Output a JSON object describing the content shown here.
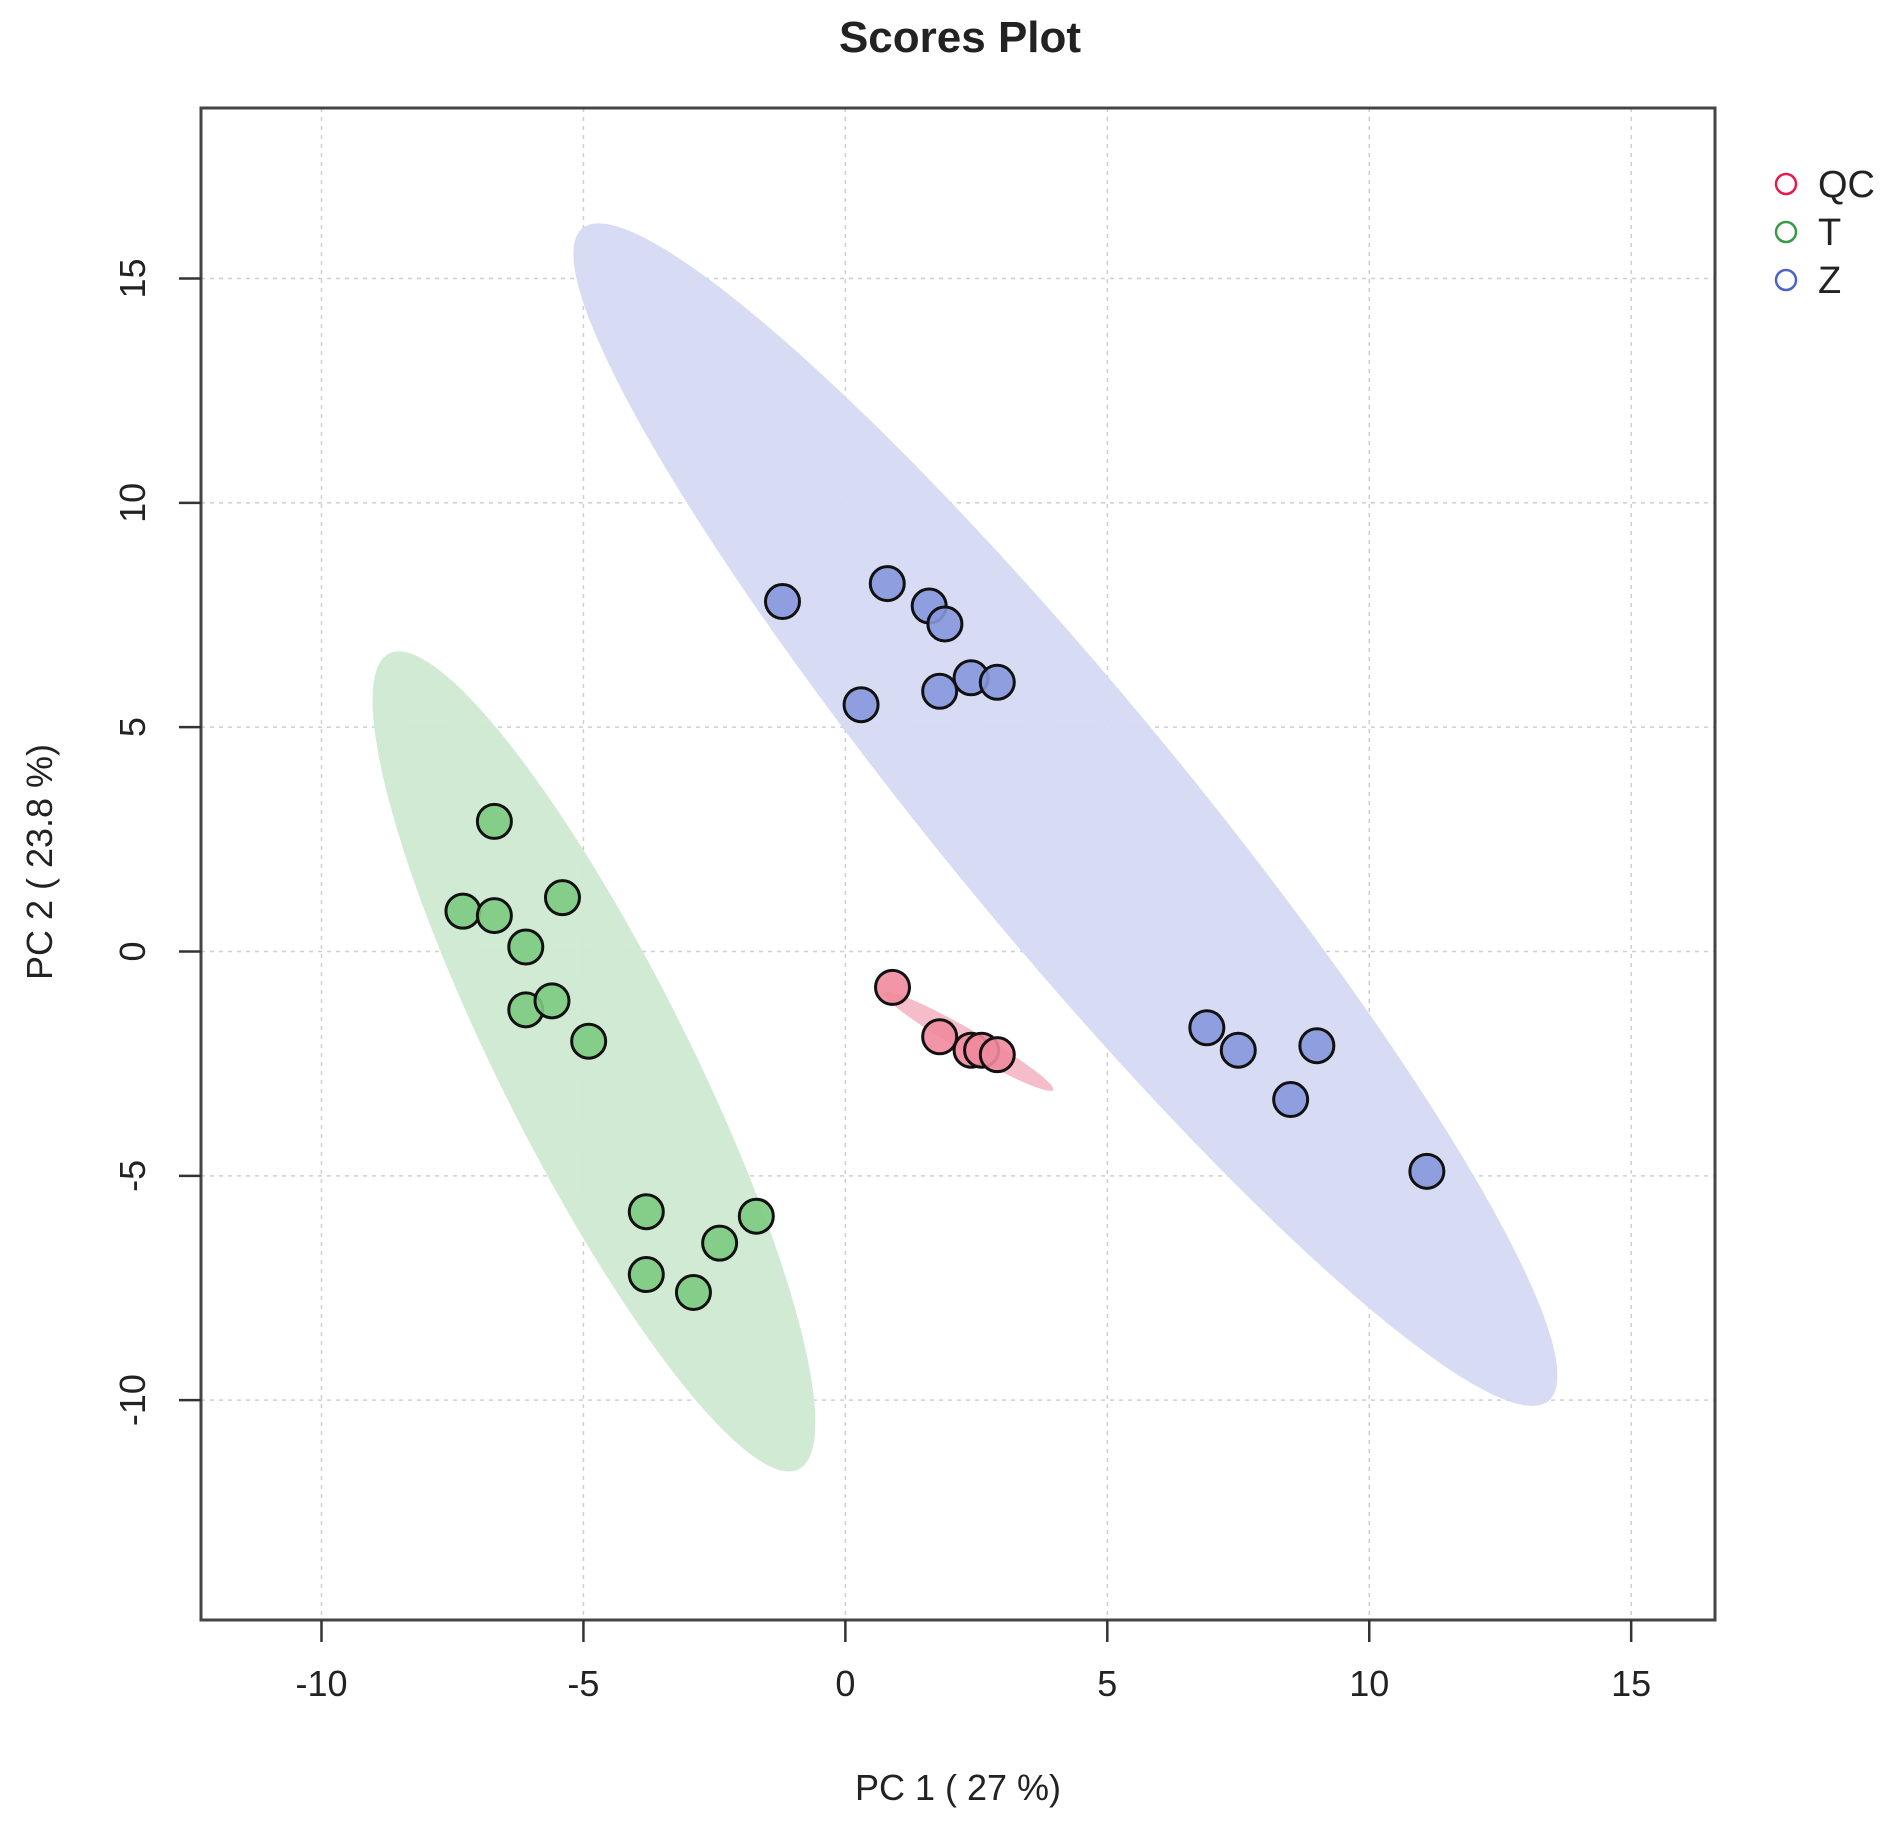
{
  "chart_data": {
    "type": "scatter",
    "title": "Scores Plot",
    "xlabel": "PC 1 ( 27 %)",
    "ylabel": "PC 2 ( 23.8 %)",
    "xlim": [
      -12.3,
      16.6
    ],
    "ylim": [
      -14.9,
      18.8
    ],
    "x_ticks": [
      -10,
      -5,
      0,
      5,
      10,
      15
    ],
    "y_ticks": [
      -10,
      -5,
      0,
      5,
      10,
      15
    ],
    "grid": true,
    "legend_position": "top-right",
    "series": [
      {
        "name": "QC",
        "color": "#e31a4c",
        "fill": "#f08a9d",
        "ellipse_fill": "#f4b8c6",
        "points": [
          {
            "x": 0.9,
            "y": -0.8
          },
          {
            "x": 1.8,
            "y": -1.9
          },
          {
            "x": 2.4,
            "y": -2.2
          },
          {
            "x": 2.6,
            "y": -2.2
          },
          {
            "x": 2.9,
            "y": -2.3
          }
        ],
        "ellipse": {
          "cx": 2.35,
          "cy": -2.0,
          "major_half": 1.95,
          "minor_half": 0.24,
          "angle_deg": -34
        }
      },
      {
        "name": "T",
        "color": "#3a9b46",
        "fill": "#7ccb82",
        "ellipse_fill": "#cfe9d1",
        "points": [
          {
            "x": -6.7,
            "y": 2.9
          },
          {
            "x": -7.3,
            "y": 0.9
          },
          {
            "x": -6.7,
            "y": 0.8
          },
          {
            "x": -5.4,
            "y": 1.2
          },
          {
            "x": -6.1,
            "y": 0.1
          },
          {
            "x": -6.1,
            "y": -1.3
          },
          {
            "x": -5.6,
            "y": -1.1
          },
          {
            "x": -4.9,
            "y": -2.0
          },
          {
            "x": -3.8,
            "y": -5.8
          },
          {
            "x": -1.7,
            "y": -5.9
          },
          {
            "x": -2.4,
            "y": -6.5
          },
          {
            "x": -3.8,
            "y": -7.2
          },
          {
            "x": -2.9,
            "y": -7.6
          }
        ],
        "ellipse": {
          "cx": -4.8,
          "cy": -2.45,
          "major_half": 9.9,
          "minor_half": 1.85,
          "angle_deg": -67
        }
      },
      {
        "name": "Z",
        "color": "#4c62c4",
        "fill": "#8797dc",
        "ellipse_fill": "#d5daf3",
        "points": [
          {
            "x": -1.2,
            "y": 7.8
          },
          {
            "x": 0.8,
            "y": 8.2
          },
          {
            "x": 1.6,
            "y": 7.7
          },
          {
            "x": 1.9,
            "y": 7.3
          },
          {
            "x": 2.4,
            "y": 6.1
          },
          {
            "x": 2.9,
            "y": 6.0
          },
          {
            "x": 1.8,
            "y": 5.8
          },
          {
            "x": 0.3,
            "y": 5.5
          },
          {
            "x": 6.9,
            "y": -1.7
          },
          {
            "x": 7.5,
            "y": -2.2
          },
          {
            "x": 9.0,
            "y": -2.1
          },
          {
            "x": 8.5,
            "y": -3.3
          },
          {
            "x": 11.1,
            "y": -4.9
          }
        ],
        "ellipse": {
          "cx": 4.2,
          "cy": 3.05,
          "major_half": 16.0,
          "minor_half": 2.45,
          "angle_deg": -55
        }
      }
    ]
  }
}
